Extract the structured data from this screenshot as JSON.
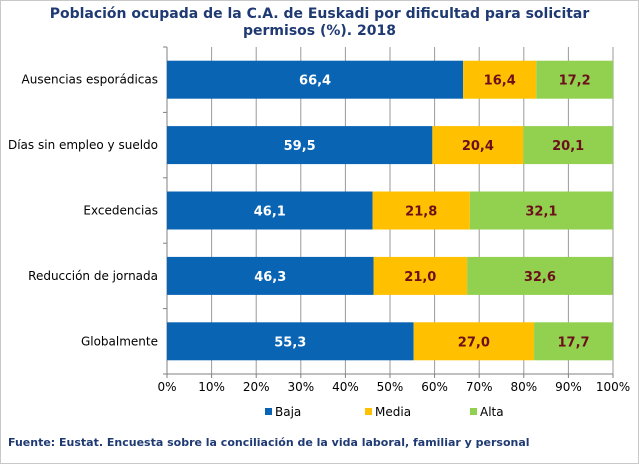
{
  "chart_data": {
    "type": "bar",
    "orientation": "horizontal",
    "stacked": true,
    "title_lines": [
      "Población ocupada de la C.A. de Euskadi por dificultad para solicitar",
      "permisos (%). 2018"
    ],
    "categories": [
      "Ausencias esporádicas",
      "Días sin empleo y sueldo",
      "Excedencias",
      "Reducción de jornada",
      "Globalmente"
    ],
    "series": [
      {
        "name": "Baja",
        "color": "#0a64b4",
        "label_color": "#ffffff",
        "values": [
          66.4,
          59.5,
          46.1,
          46.3,
          55.3
        ],
        "labels": [
          "66,4",
          "59,5",
          "46,1",
          "46,3",
          "55,3"
        ]
      },
      {
        "name": "Media",
        "color": "#ffc000",
        "label_color": "#6b0f1a",
        "values": [
          16.4,
          20.4,
          21.8,
          21.0,
          27.0
        ],
        "labels": [
          "16,4",
          "20,4",
          "21,8",
          "21,0",
          "27,0"
        ]
      },
      {
        "name": "Alta",
        "color": "#92d050",
        "label_color": "#6b0f1a",
        "values": [
          17.2,
          20.1,
          32.1,
          32.6,
          17.7
        ],
        "labels": [
          "17,2",
          "20,1",
          "32,1",
          "32,6",
          "17,7"
        ]
      }
    ],
    "xlim": [
      0,
      100
    ],
    "x_ticks": [
      0,
      10,
      20,
      30,
      40,
      50,
      60,
      70,
      80,
      90,
      100
    ],
    "x_tick_labels": [
      "0%",
      "10%",
      "20%",
      "30%",
      "40%",
      "50%",
      "60%",
      "70%",
      "80%",
      "90%",
      "100%"
    ],
    "grid": true,
    "legend_position": "bottom"
  },
  "footer": "Fuente: Eustat. Encuesta sobre la conciliación de la vida laboral, familiar y personal"
}
